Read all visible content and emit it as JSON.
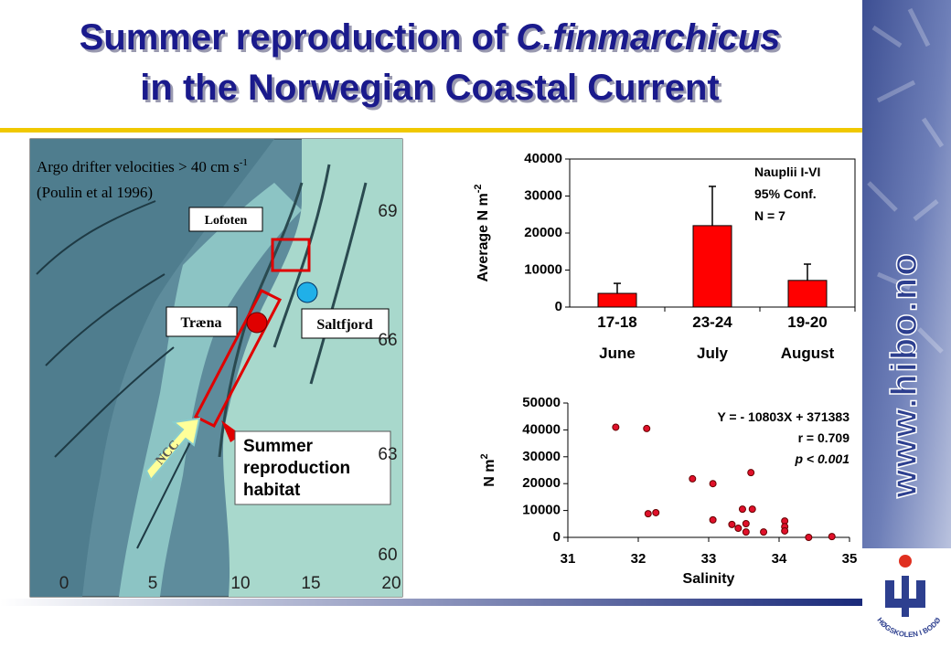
{
  "title": {
    "line1": "Summer reproduction of ",
    "line1_species": "C.finmarchicus",
    "line2": "in the Norwegian Coastal Current"
  },
  "map": {
    "caption_line1": "Argo drifter velocities > 40 cm s",
    "caption_superscript": "-1",
    "caption_line2": "(Poulin et al 1996)",
    "places": [
      "Lofoten",
      "Træna",
      "Saltfjord"
    ],
    "current": "NCC",
    "habitat_label": [
      "Summer",
      "reproduction",
      "habitat"
    ],
    "lat_labels": [
      69,
      66,
      63,
      60
    ],
    "lon_labels": [
      0,
      5,
      10,
      15,
      20
    ]
  },
  "sidebar": {
    "url": "www.hibo.no",
    "logo_text": "HØGSKOLEN I BODØ"
  },
  "chart_data": [
    {
      "type": "bar",
      "categories": [
        "17-18",
        "23-24",
        "19-20"
      ],
      "category_months": [
        "June",
        "July",
        "August"
      ],
      "values": [
        3700,
        22000,
        7200
      ],
      "errors": [
        2700,
        10600,
        4400
      ],
      "color": "#ff0000",
      "ylabel": "Average N m",
      "ylabel_superscript": "-2",
      "ylim": [
        0,
        40000
      ],
      "yticks": [
        0,
        10000,
        20000,
        30000,
        40000
      ],
      "legend_text": [
        "Nauplii I-VI",
        "95% Conf.",
        "N = 7"
      ]
    },
    {
      "type": "scatter",
      "x": [
        31.68,
        32.12,
        32.14,
        32.25,
        32.77,
        33.06,
        33.06,
        33.33,
        33.42,
        33.48,
        33.53,
        33.53,
        33.6,
        33.62,
        33.78,
        34.08,
        34.08,
        34.08,
        34.42,
        34.75
      ],
      "values": [
        41000,
        40500,
        8800,
        9200,
        21800,
        20000,
        6500,
        4800,
        3400,
        10500,
        2000,
        5100,
        24100,
        10500,
        2000,
        6100,
        4000,
        2400,
        0,
        300
      ],
      "color": "#e0102a",
      "xlabel": "Salinity",
      "ylabel": "N m",
      "ylabel_superscript": "2",
      "xlim": [
        31,
        35
      ],
      "xticks": [
        31,
        32,
        33,
        34,
        35
      ],
      "ylim": [
        0,
        50000
      ],
      "yticks": [
        0,
        10000,
        20000,
        30000,
        40000,
        50000
      ],
      "annotations": [
        "Y = - 10803X + 371383",
        "r = 0.709",
        "p < 0.001"
      ]
    }
  ]
}
